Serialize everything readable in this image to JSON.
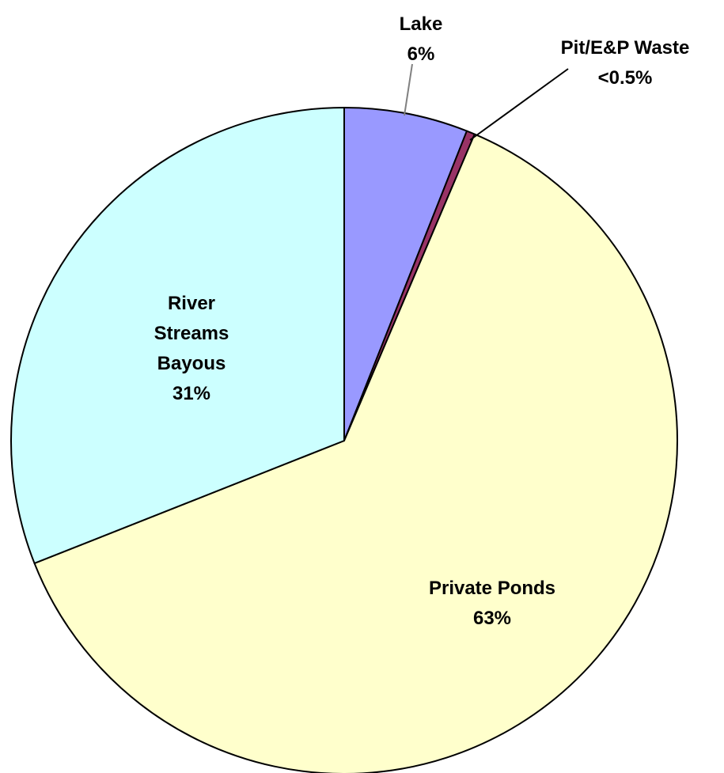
{
  "chart_data": {
    "type": "pie",
    "title": "",
    "start": "12 o'clock",
    "direction": "clockwise",
    "slices": [
      {
        "name": "Lake",
        "label_lines": [
          "Lake",
          "6%"
        ],
        "value": 6.0,
        "color": "#9999ff",
        "label_position": "outside",
        "leader_color": "#808080"
      },
      {
        "name": "Pit/E&P Waste",
        "label_lines": [
          "Pit/E&P Waste",
          "<0.5%"
        ],
        "value": 0.4,
        "color": "#993366",
        "label_position": "outside",
        "leader_color": "#000000"
      },
      {
        "name": "Private Ponds",
        "label_lines": [
          "Private Ponds",
          "63%"
        ],
        "value": 62.6,
        "color": "#ffffcc",
        "label_position": "inside"
      },
      {
        "name": "River Streams Bayous",
        "label_lines": [
          "River",
          "Streams",
          "Bayous",
          "31%"
        ],
        "value": 31.0,
        "color": "#ccffff",
        "label_position": "inside"
      }
    ],
    "legend": "none",
    "grid": false
  }
}
